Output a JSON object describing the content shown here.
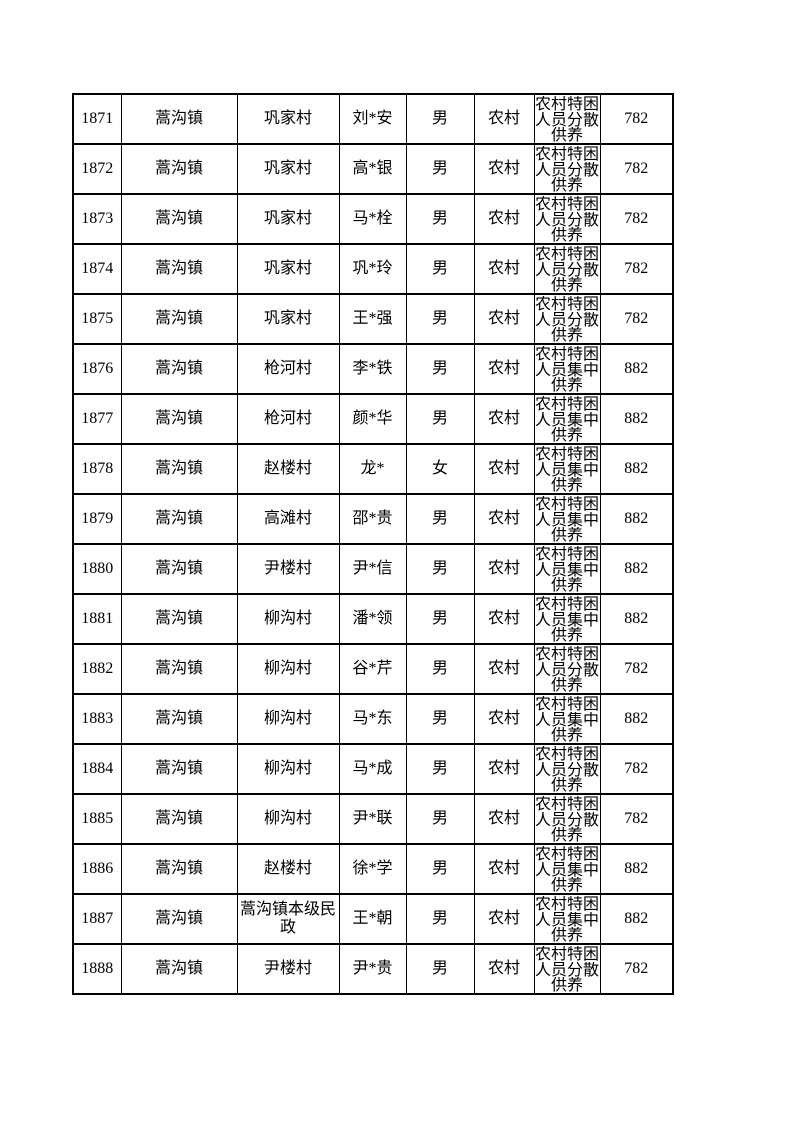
{
  "colors": {
    "page_background": "#ffffff",
    "table_border": "#000000",
    "text": "#000000"
  },
  "table": {
    "columns": [
      {
        "key": "serial"
      },
      {
        "key": "town"
      },
      {
        "key": "village"
      },
      {
        "key": "name"
      },
      {
        "key": "gender"
      },
      {
        "key": "residence"
      },
      {
        "key": "category"
      },
      {
        "key": "amount"
      }
    ],
    "rows": [
      {
        "serial": "1871",
        "town": "蒿沟镇",
        "village": "巩家村",
        "name": "刘*安",
        "gender": "男",
        "residence": "农村",
        "category": "农村特困人员分散供养",
        "category_lines": [
          "农村特困",
          "人员分散",
          "供养"
        ],
        "amount": "782"
      },
      {
        "serial": "1872",
        "town": "蒿沟镇",
        "village": "巩家村",
        "name": "高*银",
        "gender": "男",
        "residence": "农村",
        "category": "农村特困人员分散供养",
        "category_lines": [
          "农村特困",
          "人员分散",
          "供养"
        ],
        "amount": "782"
      },
      {
        "serial": "1873",
        "town": "蒿沟镇",
        "village": "巩家村",
        "name": "马*栓",
        "gender": "男",
        "residence": "农村",
        "category": "农村特困人员分散供养",
        "category_lines": [
          "农村特困",
          "人员分散",
          "供养"
        ],
        "amount": "782"
      },
      {
        "serial": "1874",
        "town": "蒿沟镇",
        "village": "巩家村",
        "name": "巩*玲",
        "gender": "男",
        "residence": "农村",
        "category": "农村特困人员分散供养",
        "category_lines": [
          "农村特困",
          "人员分散",
          "供养"
        ],
        "amount": "782"
      },
      {
        "serial": "1875",
        "town": "蒿沟镇",
        "village": "巩家村",
        "name": "王*强",
        "gender": "男",
        "residence": "农村",
        "category": "农村特困人员分散供养",
        "category_lines": [
          "农村特困",
          "人员分散",
          "供养"
        ],
        "amount": "782"
      },
      {
        "serial": "1876",
        "town": "蒿沟镇",
        "village": "枪河村",
        "name": "李*铁",
        "gender": "男",
        "residence": "农村",
        "category": "农村特困人员集中供养",
        "category_lines": [
          "农村特困",
          "人员集中",
          "供养"
        ],
        "amount": "882"
      },
      {
        "serial": "1877",
        "town": "蒿沟镇",
        "village": "枪河村",
        "name": "颜*华",
        "gender": "男",
        "residence": "农村",
        "category": "农村特困人员集中供养",
        "category_lines": [
          "农村特困",
          "人员集中",
          "供养"
        ],
        "amount": "882"
      },
      {
        "serial": "1878",
        "town": "蒿沟镇",
        "village": "赵楼村",
        "name": "龙*",
        "gender": "女",
        "residence": "农村",
        "category": "农村特困人员集中供养",
        "category_lines": [
          "农村特困",
          "人员集中",
          "供养"
        ],
        "amount": "882"
      },
      {
        "serial": "1879",
        "town": "蒿沟镇",
        "village": "高滩村",
        "name": "邵*贵",
        "gender": "男",
        "residence": "农村",
        "category": "农村特困人员集中供养",
        "category_lines": [
          "农村特困",
          "人员集中",
          "供养"
        ],
        "amount": "882"
      },
      {
        "serial": "1880",
        "town": "蒿沟镇",
        "village": "尹楼村",
        "name": "尹*信",
        "gender": "男",
        "residence": "农村",
        "category": "农村特困人员集中供养",
        "category_lines": [
          "农村特困",
          "人员集中",
          "供养"
        ],
        "amount": "882"
      },
      {
        "serial": "1881",
        "town": "蒿沟镇",
        "village": "柳沟村",
        "name": "潘*领",
        "gender": "男",
        "residence": "农村",
        "category": "农村特困人员集中供养",
        "category_lines": [
          "农村特困",
          "人员集中",
          "供养"
        ],
        "amount": "882"
      },
      {
        "serial": "1882",
        "town": "蒿沟镇",
        "village": "柳沟村",
        "name": "谷*芹",
        "gender": "男",
        "residence": "农村",
        "category": "农村特困人员分散供养",
        "category_lines": [
          "农村特困",
          "人员分散",
          "供养"
        ],
        "amount": "782"
      },
      {
        "serial": "1883",
        "town": "蒿沟镇",
        "village": "柳沟村",
        "name": "马*东",
        "gender": "男",
        "residence": "农村",
        "category": "农村特困人员集中供养",
        "category_lines": [
          "农村特困",
          "人员集中",
          "供养"
        ],
        "amount": "882"
      },
      {
        "serial": "1884",
        "town": "蒿沟镇",
        "village": "柳沟村",
        "name": "马*成",
        "gender": "男",
        "residence": "农村",
        "category": "农村特困人员分散供养",
        "category_lines": [
          "农村特困",
          "人员分散",
          "供养"
        ],
        "amount": "782"
      },
      {
        "serial": "1885",
        "town": "蒿沟镇",
        "village": "柳沟村",
        "name": "尹*联",
        "gender": "男",
        "residence": "农村",
        "category": "农村特困人员分散供养",
        "category_lines": [
          "农村特困",
          "人员分散",
          "供养"
        ],
        "amount": "782"
      },
      {
        "serial": "1886",
        "town": "蒿沟镇",
        "village": "赵楼村",
        "name": "徐*学",
        "gender": "男",
        "residence": "农村",
        "category": "农村特困人员集中供养",
        "category_lines": [
          "农村特困",
          "人员集中",
          "供养"
        ],
        "amount": "882"
      },
      {
        "serial": "1887",
        "town": "蒿沟镇",
        "village": "蒿沟镇本级民政",
        "name": "王*朝",
        "gender": "男",
        "residence": "农村",
        "category": "农村特困人员集中供养",
        "category_lines": [
          "农村特困",
          "人员集中",
          "供养"
        ],
        "amount": "882"
      },
      {
        "serial": "1888",
        "town": "蒿沟镇",
        "village": "尹楼村",
        "name": "尹*贵",
        "gender": "男",
        "residence": "农村",
        "category": "农村特困人员分散供养",
        "category_lines": [
          "农村特困",
          "人员分散",
          "供养"
        ],
        "amount": "782"
      }
    ]
  }
}
